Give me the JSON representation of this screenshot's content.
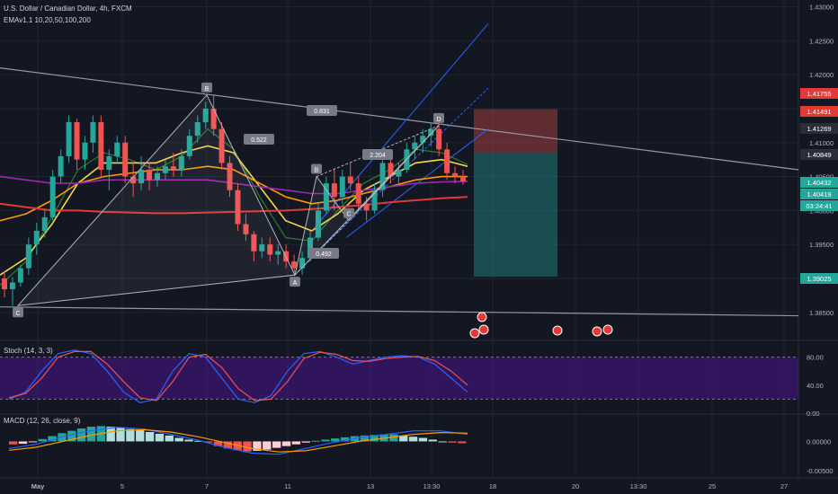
{
  "header": {
    "title": "U.S. Dollar / Canadian Dollar, 4h, FXCM",
    "indicator": "EMAv1.1 10,20,50,100,200"
  },
  "colors": {
    "bg": "#131722",
    "up": "#26a69a",
    "down": "#ef5350",
    "ema10": "#2e7d32",
    "ema20": "#f2d64b",
    "ema50": "#ff9800",
    "ema100": "#9c27b0",
    "ema200": "#e53935",
    "stoch_k": "#2962ff",
    "stoch_d": "#ef5350",
    "stoch_band": "#4a148c"
  },
  "chart_data": [
    {
      "type": "candlestick",
      "title": "",
      "x_ticks": [
        "May",
        "5",
        "7",
        "11",
        "13",
        "13:30",
        "18",
        "20",
        "13:30",
        "25",
        "27"
      ],
      "ylim": [
        1.381,
        1.431
      ],
      "y_ticks": [
        "1.43000",
        "1.42500",
        "1.42000",
        "1.41500",
        "1.41000",
        "1.40500",
        "1.40000",
        "1.39500",
        "1.39000",
        "1.38500"
      ],
      "candles": [
        [
          1.39,
          1.391,
          1.3872,
          1.3884
        ],
        [
          1.3884,
          1.3902,
          1.386,
          1.3894
        ],
        [
          1.3894,
          1.392,
          1.3888,
          1.3915
        ],
        [
          1.3915,
          1.396,
          1.3905,
          1.395
        ],
        [
          1.395,
          1.3982,
          1.3935,
          1.397
        ],
        [
          1.397,
          1.4002,
          1.396,
          1.399
        ],
        [
          1.399,
          1.406,
          1.3985,
          1.405
        ],
        [
          1.405,
          1.409,
          1.404,
          1.408
        ],
        [
          1.408,
          1.414,
          1.407,
          1.413
        ],
        [
          1.413,
          1.4135,
          1.406,
          1.4075
        ],
        [
          1.4075,
          1.411,
          1.406,
          1.41
        ],
        [
          1.41,
          1.414,
          1.4085,
          1.413
        ],
        [
          1.413,
          1.414,
          1.405,
          1.406
        ],
        [
          1.406,
          1.409,
          1.403,
          1.408
        ],
        [
          1.408,
          1.411,
          1.407,
          1.41
        ],
        [
          1.41,
          1.411,
          1.404,
          1.405
        ],
        [
          1.405,
          1.407,
          1.402,
          1.404
        ],
        [
          1.404,
          1.408,
          1.403,
          1.406
        ],
        [
          1.406,
          1.407,
          1.403,
          1.4045
        ],
        [
          1.4045,
          1.4065,
          1.4035,
          1.4055
        ],
        [
          1.4055,
          1.4075,
          1.4045,
          1.4065
        ],
        [
          1.4065,
          1.4085,
          1.405,
          1.406
        ],
        [
          1.406,
          1.409,
          1.405,
          1.408
        ],
        [
          1.408,
          1.412,
          1.4075,
          1.411
        ],
        [
          1.411,
          1.414,
          1.41,
          1.413
        ],
        [
          1.413,
          1.416,
          1.412,
          1.415
        ],
        [
          1.415,
          1.417,
          1.411,
          1.412
        ],
        [
          1.412,
          1.413,
          1.406,
          1.407
        ],
        [
          1.407,
          1.408,
          1.402,
          1.403
        ],
        [
          1.403,
          1.404,
          1.397,
          1.398
        ],
        [
          1.398,
          1.3995,
          1.3955,
          1.3965
        ],
        [
          1.3965,
          1.397,
          1.3925,
          1.394
        ],
        [
          1.394,
          1.396,
          1.393,
          1.395
        ],
        [
          1.395,
          1.396,
          1.3925,
          1.3935
        ],
        [
          1.3935,
          1.395,
          1.392,
          1.394
        ],
        [
          1.394,
          1.395,
          1.3915,
          1.3925
        ],
        [
          1.3925,
          1.3935,
          1.3905,
          1.3915
        ],
        [
          1.3915,
          1.394,
          1.3905,
          1.393
        ],
        [
          1.393,
          1.397,
          1.3925,
          1.396
        ],
        [
          1.396,
          1.401,
          1.3955,
          1.4
        ],
        [
          1.4,
          1.405,
          1.3995,
          1.404
        ],
        [
          1.404,
          1.406,
          1.4,
          1.402
        ],
        [
          1.402,
          1.406,
          1.401,
          1.405
        ],
        [
          1.405,
          1.407,
          1.403,
          1.404
        ],
        [
          1.404,
          1.405,
          1.4,
          1.401
        ],
        [
          1.401,
          1.402,
          1.3985,
          1.4
        ],
        [
          1.4,
          1.404,
          1.3995,
          1.403
        ],
        [
          1.403,
          1.408,
          1.402,
          1.407
        ],
        [
          1.407,
          1.408,
          1.404,
          1.405
        ],
        [
          1.405,
          1.407,
          1.404,
          1.406
        ],
        [
          1.406,
          1.41,
          1.4055,
          1.409
        ],
        [
          1.409,
          1.411,
          1.4075,
          1.41
        ],
        [
          1.41,
          1.412,
          1.4085,
          1.411
        ],
        [
          1.411,
          1.413,
          1.4095,
          1.412
        ],
        [
          1.412,
          1.413,
          1.408,
          1.409
        ],
        [
          1.409,
          1.41,
          1.4045,
          1.4055
        ],
        [
          1.4055,
          1.4065,
          1.404,
          1.405
        ],
        [
          1.405,
          1.406,
          1.4038,
          1.4043
        ]
      ],
      "ema_values": {
        "ema10": [
          1.389,
          1.3925,
          1.399,
          1.406,
          1.4085,
          1.4075,
          1.406,
          1.408,
          1.412,
          1.409,
          1.402,
          1.396,
          1.3955,
          1.4,
          1.404,
          1.406,
          1.409,
          1.4085,
          1.4068
        ],
        "ema20": [
          1.3905,
          1.393,
          1.398,
          1.404,
          1.407,
          1.407,
          1.407,
          1.4085,
          1.4095,
          1.4085,
          1.4035,
          1.3985,
          1.397,
          1.3995,
          1.403,
          1.405,
          1.407,
          1.4075,
          1.4065
        ],
        "ema50": [
          1.3985,
          1.3995,
          1.4015,
          1.404,
          1.405,
          1.4055,
          1.406,
          1.406,
          1.4065,
          1.406,
          1.404,
          1.402,
          1.401,
          1.4015,
          1.4025,
          1.4035,
          1.4045,
          1.405,
          1.405
        ],
        "ema100": [
          1.405,
          1.4045,
          1.404,
          1.404,
          1.4045,
          1.4045,
          1.4045,
          1.4045,
          1.4045,
          1.404,
          1.4035,
          1.403,
          1.4025,
          1.4025,
          1.403,
          1.4035,
          1.404,
          1.4042,
          1.4043
        ],
        "ema200": [
          1.401,
          1.4005,
          1.4,
          1.4,
          1.3998,
          1.3997,
          1.3996,
          1.3996,
          1.3997,
          1.3998,
          1.3999,
          1.4,
          1.4002,
          1.4005,
          1.4008,
          1.4012,
          1.4015,
          1.4018,
          1.402
        ]
      },
      "pattern": {
        "points": [
          {
            "label": "C",
            "value": 1.386
          },
          {
            "label": "B",
            "value": 1.417
          },
          {
            "label": "A",
            "value": 1.3905
          },
          {
            "label": "B",
            "value": 1.405
          },
          {
            "label": "C",
            "value": 1.3985
          },
          {
            "label": "D",
            "value": 1.4125
          }
        ],
        "ratios": [
          "0.522",
          "0.831",
          "0.492",
          "2.204"
        ]
      },
      "price_tags": [
        {
          "value": "1.41755",
          "color": "#e53935"
        },
        {
          "value": "1.41491",
          "color": "#e53935"
        },
        {
          "value": "1.41269",
          "color": "#2a2e39"
        },
        {
          "value": "1.40849",
          "color": "#2a2e39"
        },
        {
          "value": "1.40432",
          "color": "#26a69a"
        },
        {
          "value": "1.40419",
          "color": "#26a69a"
        },
        {
          "value": "03:24:41",
          "color": "#26a69a"
        },
        {
          "value": "1.39025",
          "color": "#26a69a"
        }
      ],
      "position": {
        "stop": 1.41491,
        "entry": 1.40849,
        "target": 1.39025
      }
    },
    {
      "type": "line",
      "title": "Stoch (14, 3, 3)",
      "ylim": [
        0,
        100
      ],
      "y_ticks": [
        "80.00",
        "40.00",
        "0.00"
      ],
      "band": [
        20,
        80
      ],
      "series": [
        {
          "values": [
            20,
            30,
            60,
            85,
            90,
            85,
            60,
            30,
            15,
            20,
            60,
            85,
            80,
            50,
            20,
            15,
            25,
            60,
            85,
            88,
            80,
            70,
            75,
            80,
            82,
            80,
            70,
            50,
            30
          ]
        },
        {
          "values": [
            22,
            28,
            50,
            80,
            88,
            88,
            70,
            45,
            22,
            18,
            45,
            80,
            84,
            65,
            35,
            18,
            20,
            45,
            78,
            87,
            84,
            75,
            74,
            78,
            80,
            81,
            75,
            60,
            40
          ]
        }
      ]
    },
    {
      "type": "bar",
      "title": "MACD (12, 26, close, 9)",
      "ylim": [
        -0.0062,
        0.0045
      ],
      "y_ticks": [
        "0.00000",
        "-0.00500"
      ],
      "histogram": [
        -0.0005,
        -0.0004,
        -0.0001,
        0.0004,
        0.0009,
        0.0014,
        0.0018,
        0.0022,
        0.0025,
        0.0026,
        0.0025,
        0.0023,
        0.0021,
        0.0019,
        0.0016,
        0.0013,
        0.001,
        0.0006,
        0.0003,
        0.0001,
        -0.0002,
        -0.0008,
        -0.0012,
        -0.0015,
        -0.0017,
        -0.0016,
        -0.0014,
        -0.0011,
        -0.0008,
        -0.0005,
        -0.0002,
        0.0001,
        0.0003,
        0.0005,
        0.0007,
        0.0009,
        0.001,
        0.0011,
        0.0012,
        0.0012,
        0.001,
        0.0008,
        0.0006,
        0.0003,
        0.0,
        -0.0002,
        -0.0003
      ],
      "macd": [
        -0.0012,
        -0.0005,
        0.0008,
        0.0018,
        0.0024,
        0.0021,
        0.0012,
        0.0002,
        -0.001,
        -0.002,
        -0.0022,
        -0.0012,
        -0.0002,
        0.0006,
        0.0012,
        0.0018,
        0.0018,
        0.0012
      ],
      "signal": [
        -0.0015,
        -0.001,
        0.0,
        0.001,
        0.0018,
        0.002,
        0.0016,
        0.0008,
        -0.0002,
        -0.0012,
        -0.0018,
        -0.0016,
        -0.0008,
        0.0,
        0.0006,
        0.0012,
        0.0015,
        0.0014
      ]
    }
  ]
}
